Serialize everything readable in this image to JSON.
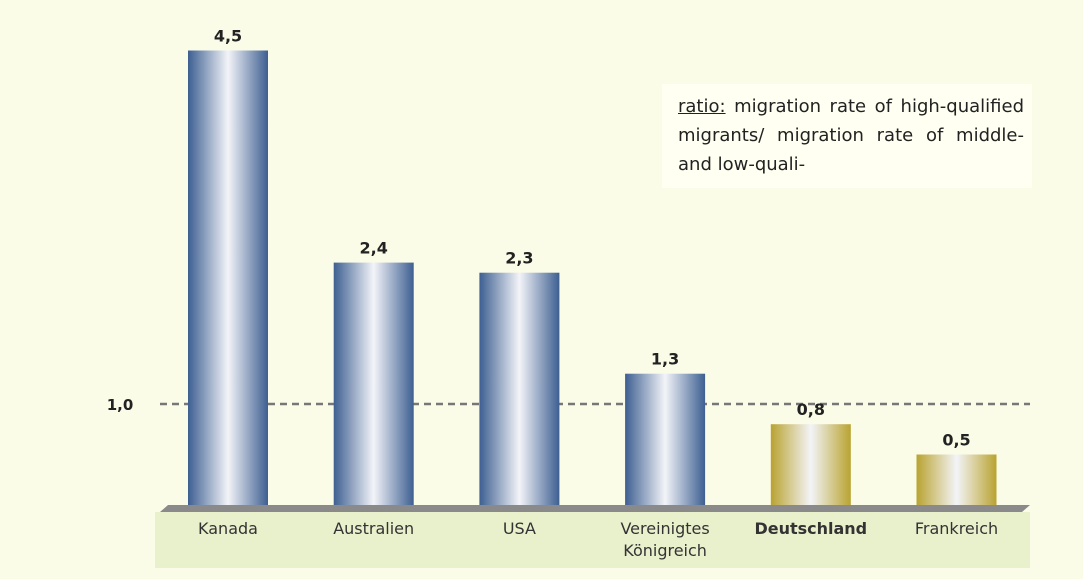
{
  "chart_data": {
    "type": "bar",
    "categories": [
      "Kanada",
      "Australien",
      "USA",
      "Vereinigtes Königreich",
      "Deutschland",
      "Frankreich"
    ],
    "values": [
      4.5,
      2.4,
      2.3,
      1.3,
      0.8,
      0.5
    ],
    "value_labels": [
      "4,5",
      "2,4",
      "2,3",
      "1,3",
      "0,8",
      "0,5"
    ],
    "colors": [
      "#3d5f91",
      "#3d5f91",
      "#3d5f91",
      "#3d5f91",
      "#b9a331",
      "#b9a331"
    ],
    "highlight_index": 4,
    "reference_line": {
      "value": 1,
      "label": "1,0"
    },
    "annotation": {
      "term": "ratio:",
      "text": "migration rate of high-qualified migrants/ migration rate of middle- and low-quali-"
    }
  }
}
